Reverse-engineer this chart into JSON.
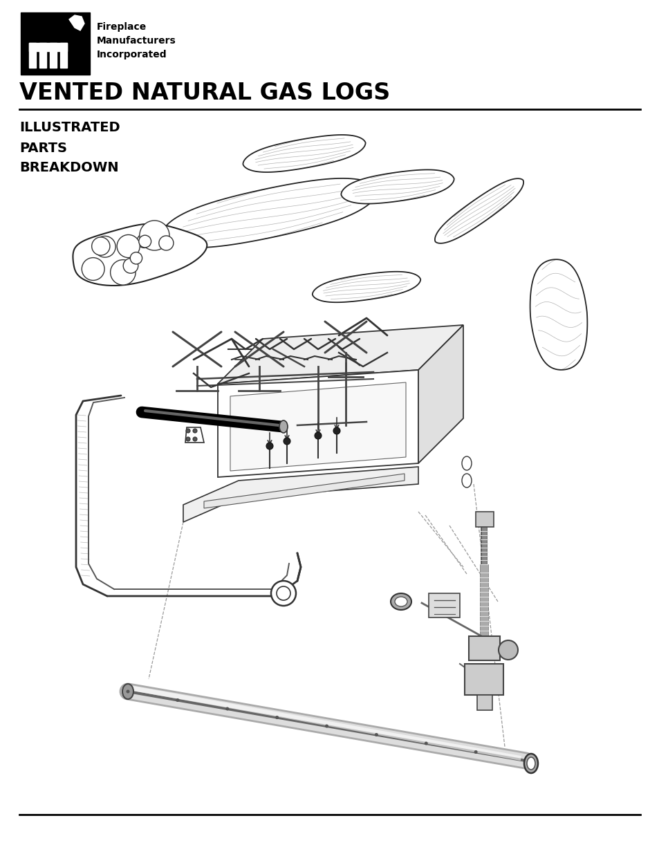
{
  "background_color": "#ffffff",
  "page_width": 9.54,
  "page_height": 12.35,
  "dpi": 100,
  "logo_text_line1": "Fireplace",
  "logo_text_line2": "Manufacturers",
  "logo_text_line3": "Incorporated",
  "main_title": "VENTED NATURAL GAS LOGS",
  "section_title_line1": "ILLUSTRATED",
  "section_title_line2": "PARTS",
  "section_title_line3": "BREAKDOWN",
  "lc": "#111111",
  "lw": 1.2
}
